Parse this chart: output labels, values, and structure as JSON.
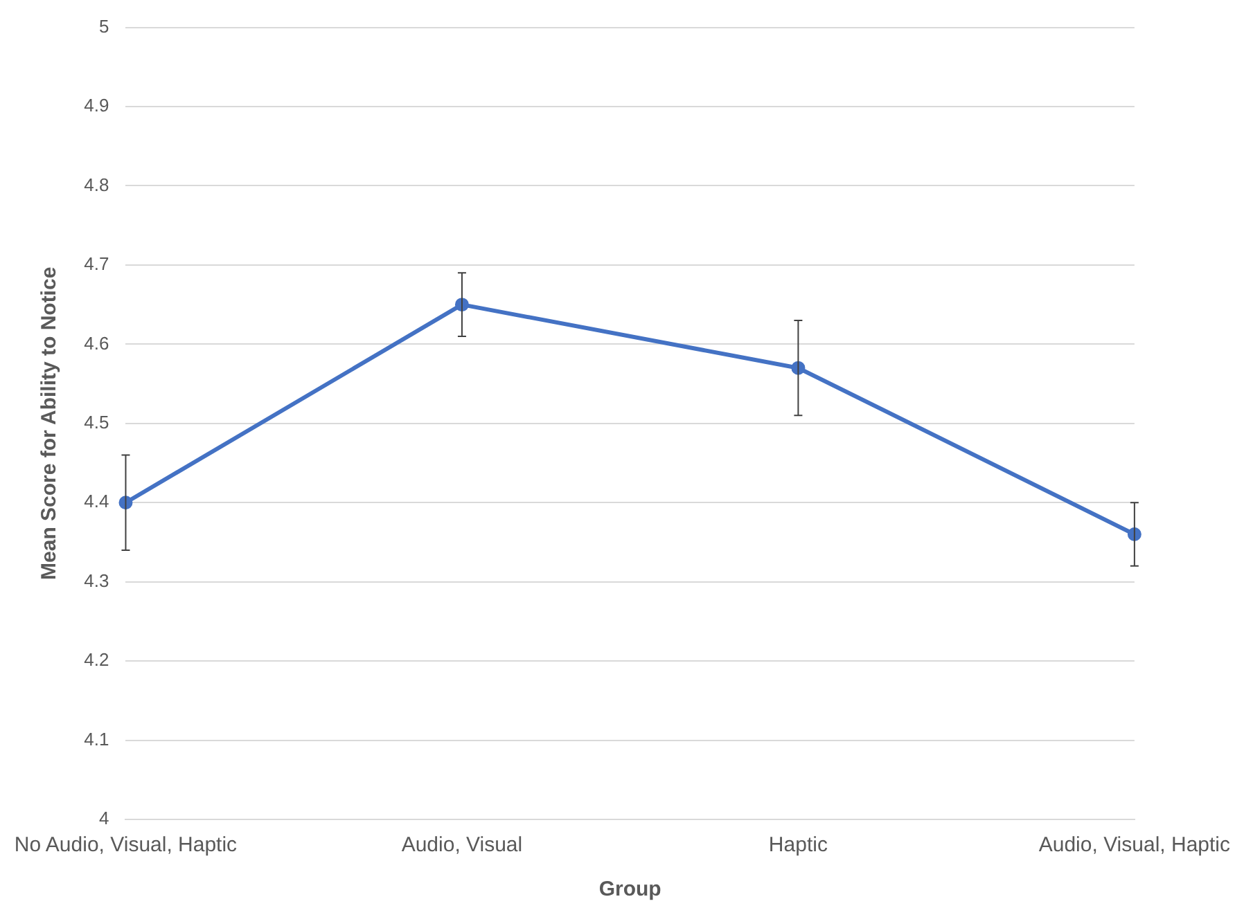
{
  "chart_data": {
    "type": "line",
    "xlabel": "Group",
    "ylabel": "Mean Score for Ability to Notice",
    "categories": [
      "No Audio, Visual, Haptic",
      "Audio, Visual",
      "Haptic",
      "Audio, Visual, Haptic"
    ],
    "series": [
      {
        "color": "#4472c4",
        "values": [
          4.4,
          4.65,
          4.57,
          4.36
        ],
        "errors": [
          0.06,
          0.04,
          0.06,
          0.04
        ]
      }
    ],
    "ylim": [
      4,
      5
    ],
    "yticks": [
      4,
      4.1,
      4.2,
      4.3,
      4.4,
      4.5,
      4.6,
      4.7,
      4.8,
      4.9,
      5
    ],
    "grid": "y",
    "legend": false,
    "marker": "circle",
    "line_style": "solid"
  }
}
